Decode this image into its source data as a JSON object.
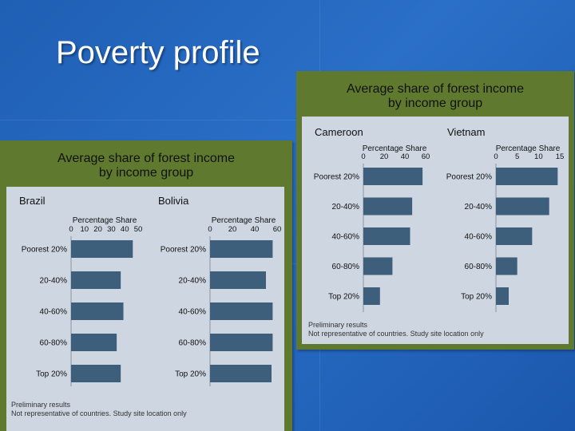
{
  "slide": {
    "title": "Poverty profile"
  },
  "chart_data": [
    {
      "type": "bar",
      "panel_title": [
        "Average share of forest income",
        "by income group"
      ],
      "footnote": [
        "Preliminary results",
        "Not representative of countries. Study site location only"
      ],
      "charts": [
        {
          "country": "Brazil",
          "axis_title": "Percentage Share",
          "ticks": [
            0,
            10,
            20,
            30,
            40,
            50
          ],
          "xlim": [
            0,
            50
          ],
          "categories": [
            "Poorest 20%",
            "20-40%",
            "40-60%",
            "60-80%",
            "Top 20%"
          ],
          "values": [
            46,
            37,
            39,
            34,
            37
          ]
        },
        {
          "country": "Bolivia",
          "axis_title": "Percentage Share",
          "ticks": [
            0,
            20,
            40,
            60
          ],
          "xlim": [
            0,
            60
          ],
          "categories": [
            "Poorest 20%",
            "20-40%",
            "40-60%",
            "60-80%",
            "Top 20%"
          ],
          "values": [
            56,
            50,
            56,
            56,
            55
          ]
        }
      ]
    },
    {
      "type": "bar",
      "panel_title": [
        "Average share of forest income",
        "by income group"
      ],
      "footnote": [
        "Preliminary results",
        "Not representative of countries. Study site location only"
      ],
      "charts": [
        {
          "country": "Cameroon",
          "axis_title": "Percentage Share",
          "ticks": [
            0,
            20,
            40,
            60
          ],
          "xlim": [
            0,
            60
          ],
          "categories": [
            "Poorest 20%",
            "20-40%",
            "40-60%",
            "60-80%",
            "Top 20%"
          ],
          "values": [
            57,
            47,
            45,
            28,
            16
          ]
        },
        {
          "country": "Vietnam",
          "axis_title": "Percentage Share",
          "ticks": [
            0,
            5,
            10,
            15
          ],
          "xlim": [
            0,
            15
          ],
          "categories": [
            "Poorest 20%",
            "20-40%",
            "40-60%",
            "60-80%",
            "Top 20%"
          ],
          "values": [
            14.5,
            12.5,
            8.5,
            5,
            3
          ]
        }
      ]
    }
  ],
  "colors": {
    "bar": "#3e5f7c",
    "panel": "#5f7a2e",
    "plot_bg": "#cdd6e1"
  }
}
